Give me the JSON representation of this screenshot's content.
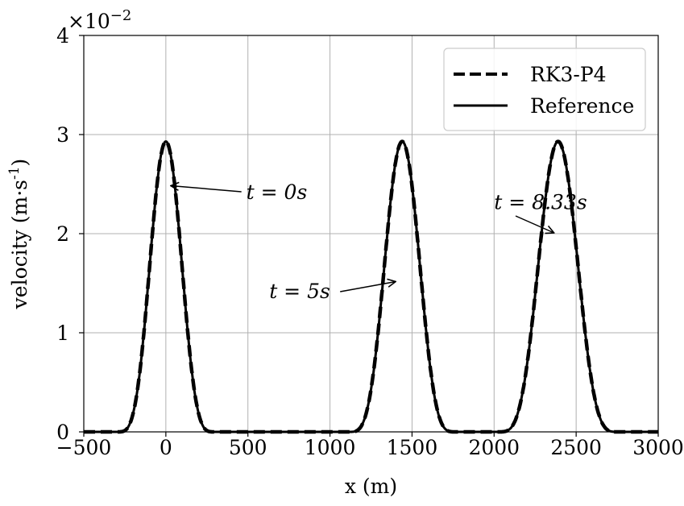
{
  "chart_data": {
    "type": "line",
    "xlabel": "x (m)",
    "ylabel": "velocity (m·s",
    "ylabel_sup": "-1",
    "ylabel_close": ")",
    "scale_label": "×10",
    "scale_exp": "−2",
    "xlim": [
      -500,
      3000
    ],
    "ylim": [
      0,
      4
    ],
    "xticks": [
      -500,
      0,
      500,
      1000,
      1500,
      2000,
      2500,
      3000
    ],
    "xtick_labels": [
      "−500",
      "0",
      "500",
      "1000",
      "1500",
      "2000",
      "2500",
      "3000"
    ],
    "yticks": [
      0,
      1,
      2,
      3,
      4
    ],
    "ytick_labels": [
      "0",
      "1",
      "2",
      "3",
      "4"
    ],
    "grid": true,
    "legend_position": "top-right",
    "legend": [
      "RK3-P4",
      "Reference"
    ],
    "pulses": [
      {
        "label": "t = 0s",
        "center": 0,
        "peak": 2.93,
        "width": 300
      },
      {
        "label": "t = 5s",
        "center": 1440,
        "peak": 2.93,
        "width": 330
      },
      {
        "label": "t = 8.33s",
        "center": 2390,
        "peak": 2.93,
        "width": 370
      }
    ],
    "series": [
      {
        "name": "RK3-P4",
        "style": "dashed",
        "color": "#000000"
      },
      {
        "name": "Reference",
        "style": "solid",
        "color": "#000000"
      }
    ],
    "annotations": [
      {
        "text": "t = 0s",
        "text_at": [
          490,
          2.35
        ],
        "arrow_to": [
          10,
          2.5
        ]
      },
      {
        "text": "t = 5s",
        "text_at": [
          630,
          1.35
        ],
        "arrow_to": [
          1420,
          1.5
        ]
      },
      {
        "text": "t = 8.33s",
        "text_at": [
          2000,
          2.25
        ],
        "arrow_to": [
          2370,
          2.0
        ]
      }
    ]
  }
}
